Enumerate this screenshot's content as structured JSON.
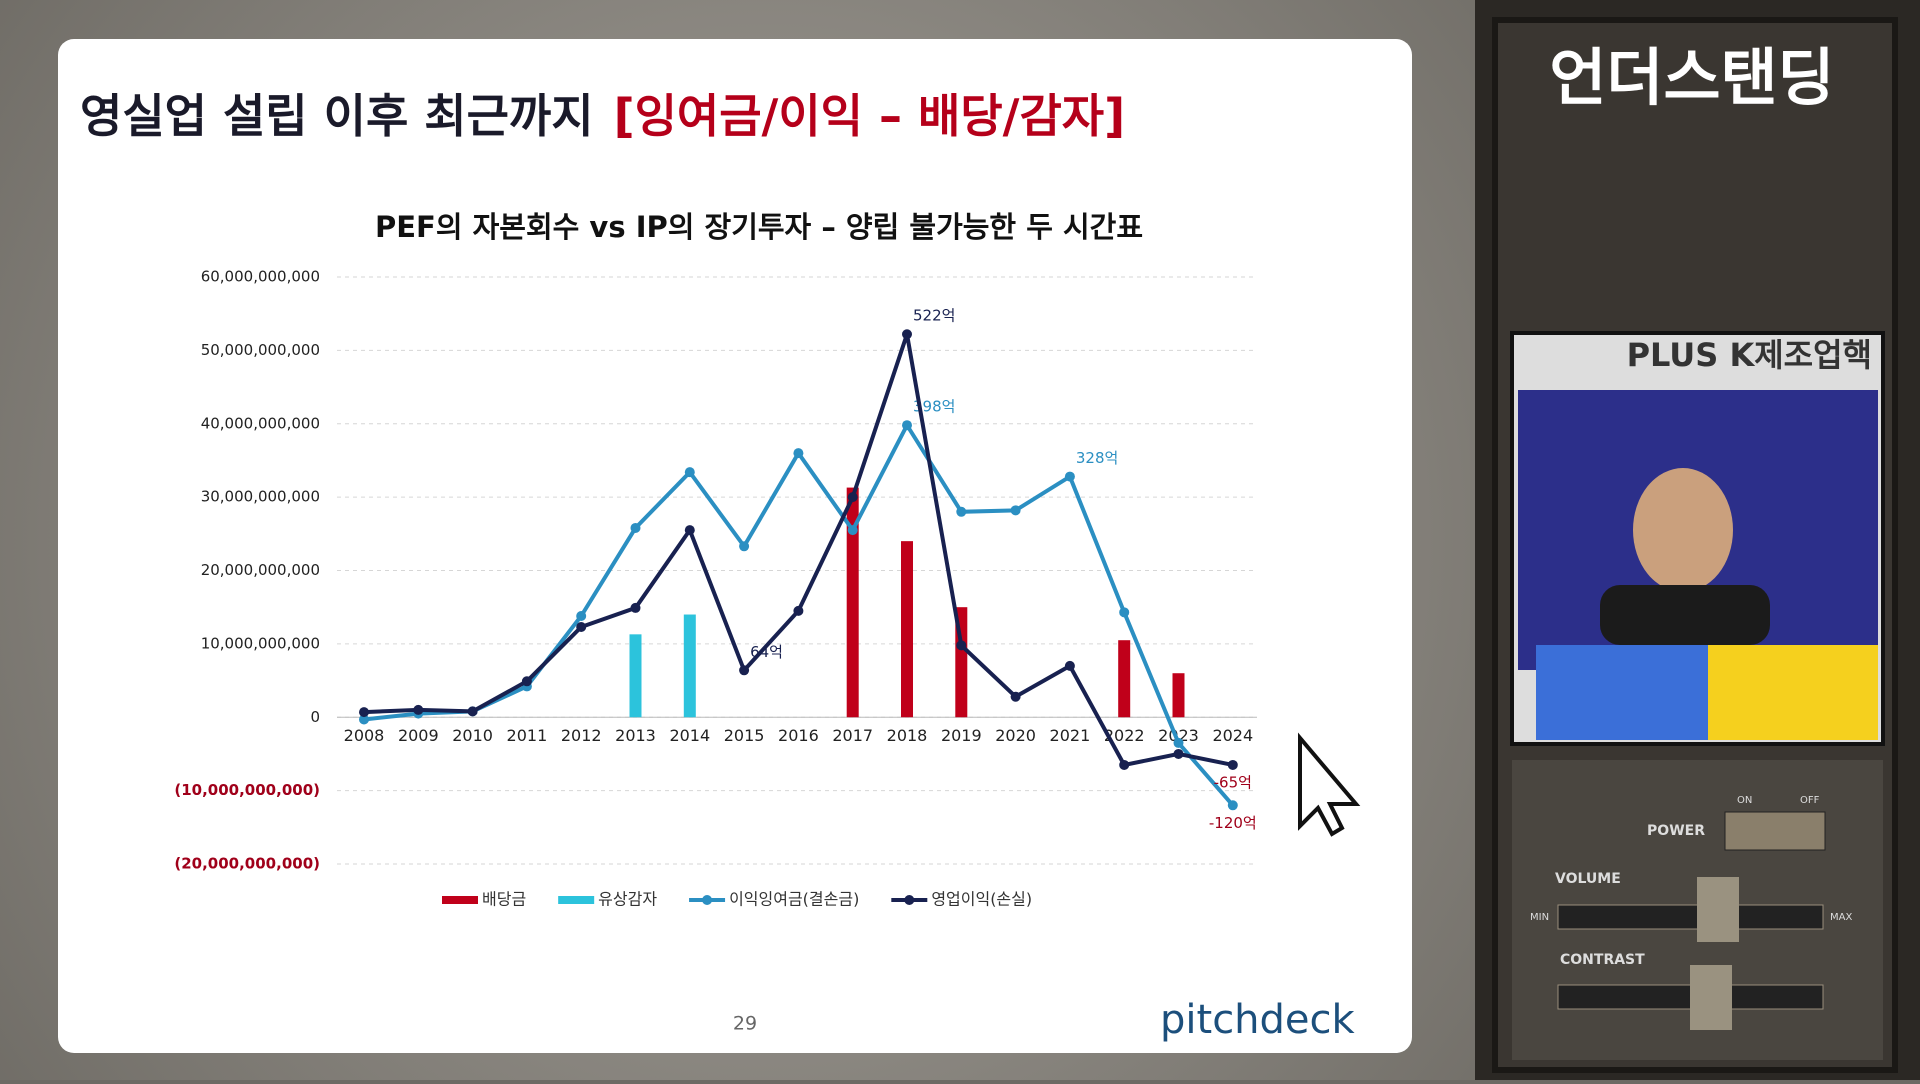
{
  "slide_title": {
    "main": "영실업 설립 이후 최근까지",
    "highlight": "[잉여금/이익 – 배당/감자]"
  },
  "chart_data": {
    "type": "combo",
    "title": "PEF의 자본회수 vs IP의 장기투자 – 양립 불가능한 두 시간표",
    "categories": [
      "2008",
      "2009",
      "2010",
      "2011",
      "2012",
      "2013",
      "2014",
      "2015",
      "2016",
      "2017",
      "2018",
      "2019",
      "2020",
      "2021",
      "2022",
      "2023",
      "2024"
    ],
    "series": [
      {
        "name": "배당금",
        "kind": "bar",
        "color": "#c0001a",
        "values": [
          null,
          null,
          null,
          null,
          null,
          null,
          null,
          null,
          null,
          31300000000,
          24000000000,
          15000000000,
          null,
          null,
          10500000000,
          6000000000,
          null
        ]
      },
      {
        "name": "유상감자",
        "kind": "bar",
        "color": "#2cc3dc",
        "values": [
          null,
          null,
          null,
          null,
          null,
          11300000000,
          14000000000,
          null,
          null,
          null,
          null,
          null,
          null,
          null,
          null,
          null,
          null
        ]
      },
      {
        "name": "이익잉여금(결손금)",
        "kind": "line",
        "color": "#2b8fc2",
        "values": [
          -300000000,
          500000000,
          800000000,
          4200000000,
          13800000000,
          25800000000,
          33400000000,
          23300000000,
          36000000000,
          25500000000,
          39800000000,
          28000000000,
          28200000000,
          32800000000,
          14300000000,
          -3500000000,
          -12000000000
        ],
        "value_labels": [
          null,
          null,
          null,
          null,
          null,
          null,
          null,
          null,
          null,
          null,
          "398억",
          null,
          null,
          "328억",
          null,
          null,
          "-120억"
        ]
      },
      {
        "name": "영업이익(손실)",
        "kind": "line",
        "color": "#182150",
        "values": [
          700000000,
          1000000000,
          800000000,
          4900000000,
          12300000000,
          14900000000,
          25500000000,
          6400000000,
          14500000000,
          30000000000,
          52200000000,
          9800000000,
          2800000000,
          7000000000,
          -6500000000,
          -5000000000,
          -6500000000
        ],
        "value_labels": [
          null,
          null,
          null,
          null,
          null,
          null,
          null,
          "64억",
          null,
          null,
          "522억",
          null,
          null,
          null,
          null,
          null,
          "-65억"
        ]
      }
    ],
    "ylim": [
      -20000000000,
      60000000000
    ],
    "yticks": [
      {
        "value": -20000000000,
        "label": "(20,000,000,000)"
      },
      {
        "value": -10000000000,
        "label": "(10,000,000,000)"
      },
      0,
      {
        "value": 10000000000,
        "label": "10,000,000,000"
      },
      {
        "value": 20000000000,
        "label": "20,000,000,000"
      },
      {
        "value": 30000000000,
        "label": "30,000,000,000"
      },
      {
        "value": 40000000000,
        "label": "40,000,000,000"
      },
      {
        "value": 50000000000,
        "label": "50,000,000,000"
      },
      {
        "value": 60000000000,
        "label": "60,000,000,000"
      }
    ],
    "grid": true,
    "negative_tick_color": "#a0001a"
  },
  "page_number": "29",
  "brand": "pitchdeck",
  "side_panel": {
    "show_title": "언더스탠딩",
    "video_caption": "PLUS K제조업핵",
    "controls": {
      "power": "POWER",
      "on": "ON",
      "off": "OFF",
      "volume": "VOLUME",
      "contrast": "CONTRAST",
      "min": "MIN",
      "max": "MAX"
    }
  }
}
